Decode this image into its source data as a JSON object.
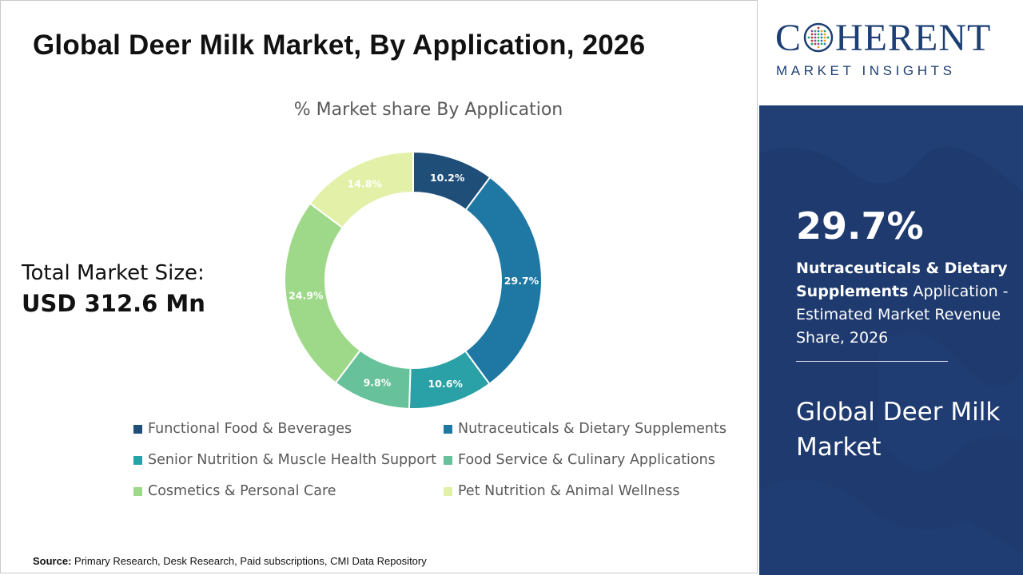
{
  "header": {
    "title": "Global Deer Milk Market, By Application, 2026"
  },
  "total_market": {
    "label": "Total Market Size:",
    "value": "USD 312.6 Mn"
  },
  "source": {
    "label": "Source:",
    "text": "Primary Research, Desk Research, Paid subscriptions, CMI Data Repository"
  },
  "logo": {
    "prefix": "C",
    "suffix": "HERENT",
    "subtitle": "MARKET INSIGHTS"
  },
  "sidebar": {
    "highlight_value": "29.7%",
    "highlight_bold": "Nutraceuticals & Dietary Supplements",
    "highlight_rest": " Application - Estimated Market Revenue Share, 2026",
    "market_name": "Global Deer Milk Market"
  },
  "chart_data": {
    "type": "pie",
    "title": "% Market share By Application",
    "categories": [
      "Functional Food & Beverages",
      "Nutraceuticals & Dietary Supplements",
      "Senior Nutrition & Muscle Health Support",
      "Food Service & Culinary Applications",
      "Cosmetics & Personal Care",
      "Pet Nutrition & Animal Wellness"
    ],
    "values": [
      10.2,
      29.7,
      10.6,
      9.8,
      24.9,
      14.8
    ],
    "data_labels": [
      "10.2%",
      "29.7%",
      "10.6%",
      "9.8%",
      "24.9%",
      "14.8%"
    ],
    "slice_order": [
      0,
      1,
      2,
      3,
      4,
      5
    ],
    "colors": [
      "#1f4e79",
      "#1f78a4",
      "#2aa1a6",
      "#67c19a",
      "#9ed989",
      "#e2f0a8"
    ],
    "label_colors": [
      "#ffffff",
      "#ffffff",
      "#ffffff",
      "#ffffff",
      "#ffffff",
      "#ffffff"
    ],
    "donut": true,
    "legend_position": "bottom"
  }
}
